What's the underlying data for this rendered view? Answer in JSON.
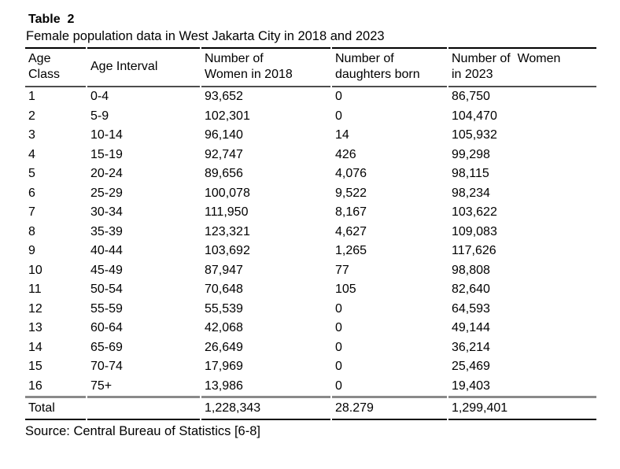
{
  "title": "Table  2",
  "caption": "Female population data in West Jakarta City in 2018 and 2023",
  "source": "Source: Central Bureau of Statistics [6-8]",
  "table": {
    "headers": [
      {
        "l1": "Age",
        "l2": "Class"
      },
      {
        "l1": "Age Interval",
        "l2": ""
      },
      {
        "l1": "Number of",
        "l2": "Women in 2018"
      },
      {
        "l1": "Number of",
        "l2": "daughters born"
      },
      {
        "l1": "Number of  Women",
        "l2": "in 2023"
      }
    ],
    "rows": [
      [
        "1",
        "0-4",
        "93,652",
        "0",
        "86,750"
      ],
      [
        "2",
        "5-9",
        "102,301",
        "0",
        "104,470"
      ],
      [
        "3",
        "10-14",
        "96,140",
        "14",
        "105,932"
      ],
      [
        "4",
        "15-19",
        "92,747",
        "426",
        "99,298"
      ],
      [
        "5",
        "20-24",
        "89,656",
        "4,076",
        "98,115"
      ],
      [
        "6",
        "25-29",
        "100,078",
        "9,522",
        "98,234"
      ],
      [
        "7",
        "30-34",
        "111,950",
        "8,167",
        "103,622"
      ],
      [
        "8",
        "35-39",
        "123,321",
        "4,627",
        "109,083"
      ],
      [
        "9",
        "40-44",
        "103,692",
        "1,265",
        "117,626"
      ],
      [
        "10",
        "45-49",
        "87,947",
        "77",
        "98,808"
      ],
      [
        "11",
        "50-54",
        "70,648",
        "105",
        "82,640"
      ],
      [
        "12",
        "55-59",
        "55,539",
        "0",
        "64,593"
      ],
      [
        "13",
        "60-64",
        "42,068",
        "0",
        "49,144"
      ],
      [
        "14",
        "65-69",
        "26,649",
        "0",
        "36,214"
      ],
      [
        "15",
        "70-74",
        "17,969",
        "0",
        "25,469"
      ],
      [
        "16",
        "75+",
        "13,986",
        "0",
        "19,403"
      ]
    ],
    "total": {
      "label": "Total",
      "age_interval": "",
      "women_2018": "1,228,343",
      "daughters_born": "28.279",
      "women_2023": "1,299,401"
    }
  },
  "colors": {
    "text": "#000000",
    "rule_black": "#000000",
    "rule_gray": "#8a8a8a",
    "background": "#ffffff"
  }
}
